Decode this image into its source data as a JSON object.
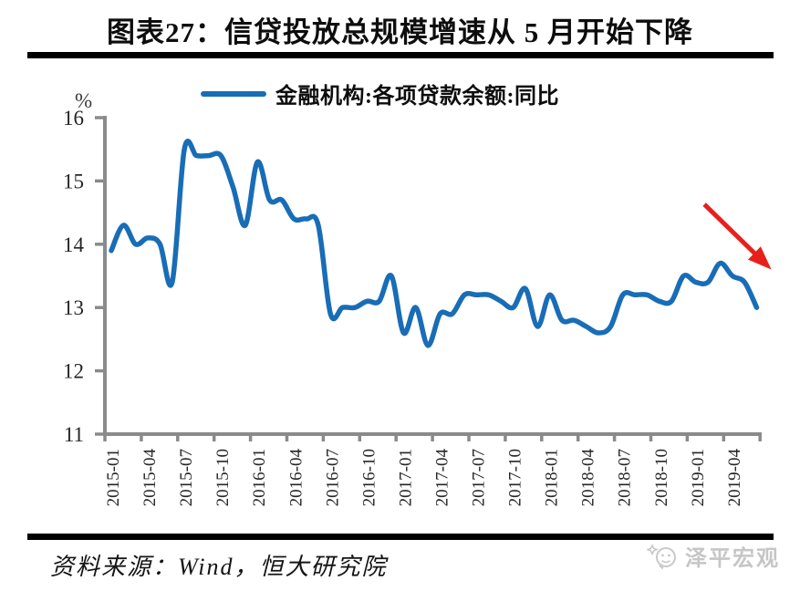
{
  "figure": {
    "title": "图表27：信贷投放总规模增速从 5 月开始下降",
    "source": "资料来源：Wind，恒大研究院",
    "watermark": "泽平宏观",
    "y_unit": "%"
  },
  "legend": {
    "label": "金融机构:各项贷款余额:同比"
  },
  "colors": {
    "line": "#186db6",
    "arrow": "#e8201c",
    "axis": "#8a8a8a",
    "tick_text": "#262626",
    "rule": "#000000",
    "watermark": "#c6c6c6"
  },
  "chart_data": {
    "type": "line",
    "title": "图表27：信贷投放总规模增速从 5 月开始下降",
    "ylabel": "%",
    "ylim": [
      11,
      16
    ],
    "yticks": [
      16,
      15,
      14,
      13,
      12,
      11
    ],
    "x_label_interval_months": 3,
    "x_tick_labels": [
      "2015-01",
      "2015-04",
      "2015-07",
      "2015-10",
      "2016-01",
      "2016-04",
      "2016-07",
      "2016-10",
      "2017-01",
      "2017-04",
      "2017-07",
      "2017-10",
      "2018-01",
      "2018-04",
      "2018-07",
      "2018-10",
      "2019-01",
      "2019-04"
    ],
    "grid": false,
    "legend_position": "top",
    "series": [
      {
        "name": "金融机构:各项贷款余额:同比",
        "months": [
          "2015-01",
          "2015-02",
          "2015-03",
          "2015-04",
          "2015-05",
          "2015-06",
          "2015-07",
          "2015-08",
          "2015-09",
          "2015-10",
          "2015-11",
          "2015-12",
          "2016-01",
          "2016-02",
          "2016-03",
          "2016-04",
          "2016-05",
          "2016-06",
          "2016-07",
          "2016-08",
          "2016-09",
          "2016-10",
          "2016-11",
          "2016-12",
          "2017-01",
          "2017-02",
          "2017-03",
          "2017-04",
          "2017-05",
          "2017-06",
          "2017-07",
          "2017-08",
          "2017-09",
          "2017-10",
          "2017-11",
          "2017-12",
          "2018-01",
          "2018-02",
          "2018-03",
          "2018-04",
          "2018-05",
          "2018-06",
          "2018-07",
          "2018-08",
          "2018-09",
          "2018-10",
          "2018-11",
          "2018-12",
          "2019-01",
          "2019-02",
          "2019-03",
          "2019-04",
          "2019-05",
          "2019-06"
        ],
        "values": [
          13.9,
          14.3,
          14.0,
          14.1,
          14.0,
          13.4,
          15.5,
          15.4,
          15.4,
          15.4,
          14.9,
          14.3,
          15.3,
          14.7,
          14.7,
          14.4,
          14.4,
          14.3,
          12.9,
          13.0,
          13.0,
          13.1,
          13.1,
          13.5,
          12.6,
          13.0,
          12.4,
          12.9,
          12.9,
          13.2,
          13.2,
          13.2,
          13.1,
          13.0,
          13.3,
          12.7,
          13.2,
          12.8,
          12.8,
          12.7,
          12.6,
          12.7,
          13.2,
          13.2,
          13.2,
          13.1,
          13.1,
          13.5,
          13.4,
          13.4,
          13.7,
          13.5,
          13.4,
          13.0
        ]
      }
    ],
    "annotation": {
      "type": "arrow",
      "direction": "down-right",
      "color": "#e8201c",
      "from": {
        "month_index": 48.7,
        "value": 14.63
      },
      "to": {
        "month_index": 54.2,
        "value": 13.6
      }
    }
  }
}
